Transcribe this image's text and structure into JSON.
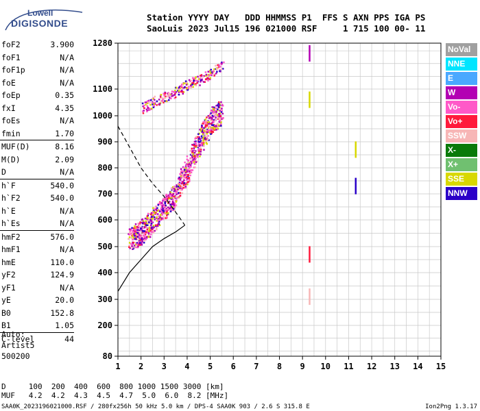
{
  "logo": {
    "line1": "Lowell",
    "line2": "DIGISONDE"
  },
  "header": {
    "line1": "Station YYYY DAY   DDD HHMMSS P1  FFS S AXN PPS IGA PS",
    "line2": "SaoLuis 2023 Jul15 196 021000 RSF     1 715 100 00- 11"
  },
  "params": {
    "group1": [
      {
        "k": "foF2",
        "v": "3.900"
      },
      {
        "k": "foF1",
        "v": "N/A"
      },
      {
        "k": "foF1p",
        "v": "N/A"
      },
      {
        "k": "foE",
        "v": "N/A"
      },
      {
        "k": "foEp",
        "v": "0.35"
      },
      {
        "k": "fxI",
        "v": "4.35"
      },
      {
        "k": "foEs",
        "v": "N/A"
      },
      {
        "k": "fmin",
        "v": "1.70"
      }
    ],
    "group2": [
      {
        "k": "MUF(D)",
        "v": "8.16"
      },
      {
        "k": "M(D)",
        "v": "2.09"
      },
      {
        "k": "D",
        "v": "N/A"
      }
    ],
    "group3": [
      {
        "k": "h`F",
        "v": "540.0"
      },
      {
        "k": "h`F2",
        "v": "540.0"
      },
      {
        "k": "h`E",
        "v": "N/A"
      },
      {
        "k": "h`Es",
        "v": "N/A"
      }
    ],
    "group4": [
      {
        "k": "hmF2",
        "v": "576.0"
      },
      {
        "k": "hmF1",
        "v": "N/A"
      },
      {
        "k": "hmE",
        "v": "110.0"
      },
      {
        "k": "yF2",
        "v": "124.9"
      },
      {
        "k": "yF1",
        "v": "N/A"
      },
      {
        "k": "yE",
        "v": "20.0"
      },
      {
        "k": "B0",
        "v": "152.8"
      },
      {
        "k": "B1",
        "v": "1.05"
      }
    ],
    "group5": [
      {
        "k": "C-level",
        "v": "44"
      }
    ]
  },
  "auto": {
    "l1": "Auto:",
    "l2": "Artist5",
    "l3": "500200"
  },
  "legend": [
    {
      "label": "NoVal",
      "color": "#a0a0a0"
    },
    {
      "label": "NNE",
      "color": "#00e5ff"
    },
    {
      "label": "E",
      "color": "#4aa8ff"
    },
    {
      "label": "W",
      "color": "#b300b3"
    },
    {
      "label": "Vo-",
      "color": "#ff59c8"
    },
    {
      "label": "Vo+",
      "color": "#ff1a3c"
    },
    {
      "label": "SSW",
      "color": "#f7b6b6"
    },
    {
      "label": "X-",
      "color": "#0a7a0a"
    },
    {
      "label": "X+",
      "color": "#70c070"
    },
    {
      "label": "SSE",
      "color": "#d8d800"
    },
    {
      "label": "NNW",
      "color": "#2a00c8"
    }
  ],
  "footer": {
    "line1": "D     100  200  400  600  800 1000 1500 3000 [km]",
    "line2": "MUF   4.2  4.2  4.3  4.5  4.7  5.0  6.0  8.2 [MHz]"
  },
  "file_info": "SAA0K_2023196021000.RSF / 280fx256h 50 kHz 5.0 km / DPS-4 SAA0K 903 / 2.6 S 315.8 E",
  "version": "Ion2Png 1.3.17",
  "chart_data": {
    "type": "scatter",
    "x_ticks": [
      1,
      2,
      3,
      4,
      5,
      6,
      7,
      8,
      9,
      10,
      11,
      12,
      13,
      14,
      15
    ],
    "y_ticks": [
      80,
      200,
      300,
      400,
      500,
      600,
      700,
      800,
      900,
      1000,
      1100,
      1280
    ],
    "xlim": [
      1,
      15
    ],
    "ylim": [
      80,
      1280
    ],
    "grid": true,
    "series": [
      {
        "x": [
          1.5,
          2.0,
          2.5,
          3.0,
          3.5,
          4.0,
          4.5,
          5.0,
          5.5
        ],
        "y": [
          530,
          555,
          600,
          650,
          700,
          800,
          900,
          980,
          1020
        ]
      },
      {
        "x": [
          2.0,
          2.5,
          3.0,
          3.5,
          4.0,
          4.5,
          5.0,
          5.5
        ],
        "y": [
          1030,
          1050,
          1070,
          1090,
          1120,
          1140,
          1160,
          1200
        ]
      },
      {
        "x": [
          9.3,
          9.3,
          9.3,
          9.3,
          11.3,
          11.3
        ],
        "y": [
          1240,
          1060,
          470,
          310,
          870,
          730
        ]
      },
      {
        "x": [
          1.0,
          1.5,
          2.0,
          2.5,
          3.0,
          3.5,
          3.9
        ],
        "y": [
          330,
          400,
          450,
          500,
          530,
          555,
          580
        ]
      },
      {
        "x": [
          1.0,
          1.5,
          2.0,
          2.5,
          3.0,
          3.5,
          3.9
        ],
        "y": [
          960,
          880,
          800,
          740,
          690,
          630,
          580
        ]
      }
    ]
  }
}
